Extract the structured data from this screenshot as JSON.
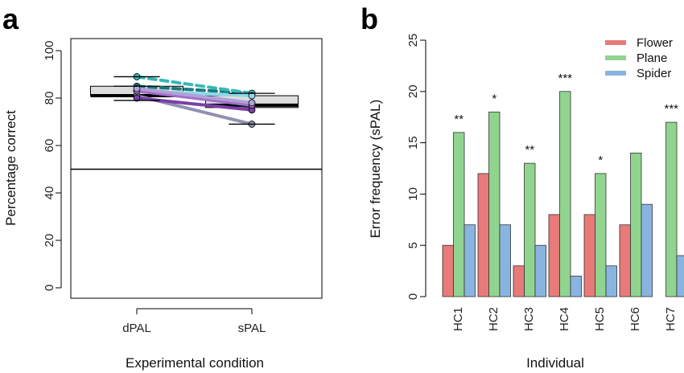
{
  "chart_data": [
    {
      "panel": "a",
      "type": "box",
      "xlabel": "Experimental condition",
      "ylabel": "Percentage correct",
      "ylim": [
        0,
        100
      ],
      "yticks": [
        0,
        20,
        40,
        60,
        80,
        100
      ],
      "categories": [
        "dPAL",
        "sPAL"
      ],
      "chance_line": 50,
      "boxes": [
        {
          "category": "dPAL",
          "q1": 81,
          "median": 81,
          "q3": 85,
          "color": "#dddddd"
        },
        {
          "category": "sPAL",
          "q1": 76,
          "median": 77,
          "q3": 81,
          "color": "#dddddd"
        }
      ],
      "lines": [
        {
          "from": 85,
          "to": 82,
          "color": "#1a7a7a",
          "style": "dashed"
        },
        {
          "from": 89,
          "to": 82,
          "color": "#38b8b8",
          "style": "dashed"
        },
        {
          "from": 83,
          "to": 81,
          "color": "#8fd8e8",
          "style": "solid"
        },
        {
          "from": 81,
          "to": 69,
          "color": "#9090b0",
          "style": "solid"
        },
        {
          "from": 80,
          "to": 75,
          "color": "#7b3fa8",
          "style": "solid"
        },
        {
          "from": 83,
          "to": 77,
          "color": "#a070c8",
          "style": "solid"
        },
        {
          "from": 84,
          "to": 78,
          "color": "#b0a0d8",
          "style": "solid"
        }
      ],
      "errorbars": [
        {
          "category": "dPAL",
          "y": 89,
          "half_width": 0.2
        },
        {
          "category": "dPAL",
          "y": 85,
          "half_width": 0.2
        },
        {
          "category": "dPAL",
          "y": 79,
          "half_width": 0.2
        },
        {
          "category": "sPAL",
          "y": 82,
          "half_width": 0.2
        },
        {
          "category": "sPAL",
          "y": 69,
          "half_width": 0.2
        }
      ]
    },
    {
      "panel": "b",
      "type": "bar",
      "xlabel": "Individual",
      "ylabel": "Error frequency (sPAL)",
      "ylim": [
        0,
        25
      ],
      "yticks": [
        0,
        5,
        10,
        15,
        20,
        25
      ],
      "categories": [
        "HC1",
        "HC2",
        "HC3",
        "HC4",
        "HC5",
        "HC6",
        "HC7"
      ],
      "series": [
        {
          "name": "Flower",
          "color": "#e87a7a",
          "values": [
            5,
            12,
            3,
            8,
            8,
            7,
            0
          ]
        },
        {
          "name": "Plane",
          "color": "#90d490",
          "values": [
            16,
            18,
            13,
            20,
            12,
            14,
            17
          ]
        },
        {
          "name": "Spider",
          "color": "#8ab4e0",
          "values": [
            7,
            7,
            5,
            2,
            3,
            9,
            4
          ]
        }
      ],
      "significance": [
        "**",
        "*",
        "**",
        "***",
        "*",
        "",
        "***"
      ],
      "legend": "top-right"
    }
  ]
}
